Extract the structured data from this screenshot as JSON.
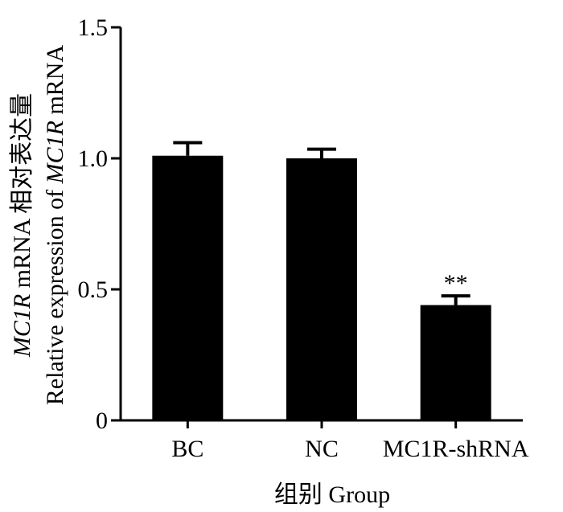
{
  "chart_data": {
    "type": "bar",
    "categories": [
      "BC",
      "NC",
      "MC1R-shRNA"
    ],
    "values": [
      1.01,
      1.0,
      0.44
    ],
    "error": [
      0.05,
      0.035,
      0.035
    ],
    "significance": [
      "",
      "",
      "**"
    ],
    "ylim": [
      0,
      1.5
    ],
    "yticks": [
      0,
      0.5,
      1.0,
      1.5
    ],
    "ytick_labels": [
      "0",
      "0.5",
      "1.0",
      "1.5"
    ],
    "xlabel": "组别 Group",
    "ylabel_line1": {
      "italic": "MC1R",
      "rest": " mRNA 相对表达量"
    },
    "ylabel_line2": {
      "plain": "Relative expression of ",
      "italic": "MC1R",
      "rest": " mRNA"
    },
    "bar_color": "#000000",
    "grid": false
  }
}
